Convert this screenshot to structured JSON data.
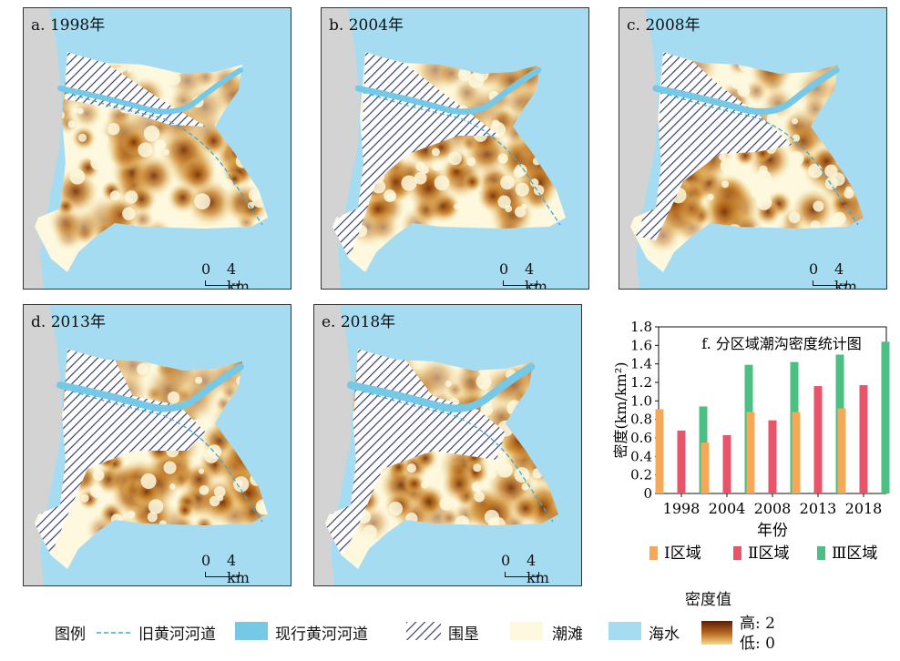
{
  "panels": [
    {
      "title": "a. 1998年",
      "variant": 0
    },
    {
      "title": "b. 2004年",
      "variant": 1
    },
    {
      "title": "c. 2008年",
      "variant": 2
    },
    {
      "title": "d. 2013年",
      "variant": 3
    },
    {
      "title": "e. 2018年",
      "variant": 4
    }
  ],
  "scale_bar": {
    "zero": "0",
    "four": "4 km"
  },
  "chart_data": {
    "type": "bar",
    "title": "f. 分区域潮沟密度统计图",
    "xlabel": "年份",
    "ylabel": "密度(km/km²)",
    "categories": [
      "1998",
      "2004",
      "2008",
      "2013",
      "2018"
    ],
    "ylim": [
      0,
      1.8
    ],
    "yticks": [
      "0",
      "0.2",
      "0.4",
      "0.6",
      "0.8",
      "1.0",
      "1.2",
      "1.4",
      "1.6",
      "1.8"
    ],
    "series": [
      {
        "name": "Ⅰ区域",
        "color": "#f5a857",
        "values": [
          0.91,
          0.55,
          0.88,
          0.88,
          0.92
        ]
      },
      {
        "name": "Ⅱ区域",
        "color": "#e8556b",
        "values": [
          0.68,
          0.63,
          0.79,
          1.16,
          1.17
        ]
      },
      {
        "name": "Ⅲ区域",
        "color": "#4cbf82",
        "values": [
          0.94,
          1.39,
          1.42,
          1.5,
          1.64
        ]
      }
    ]
  },
  "legend": {
    "title": "图例",
    "old_channel": "旧黄河河道",
    "current_channel": "现行黄河河道",
    "reclamation": "围垦",
    "tidal_flat": "潮滩",
    "sea": "海水",
    "density_title": "密度值",
    "high": "高: 2",
    "low": "低: 0"
  },
  "colors": {
    "sea": "#a6dcf2",
    "land": "#d3d3d3",
    "flat": "#fdf8de",
    "river": "#76c9e6",
    "old_channel": "#3fa8d8",
    "density_low": "#f6d98a",
    "density_high": "#5a1e08"
  }
}
